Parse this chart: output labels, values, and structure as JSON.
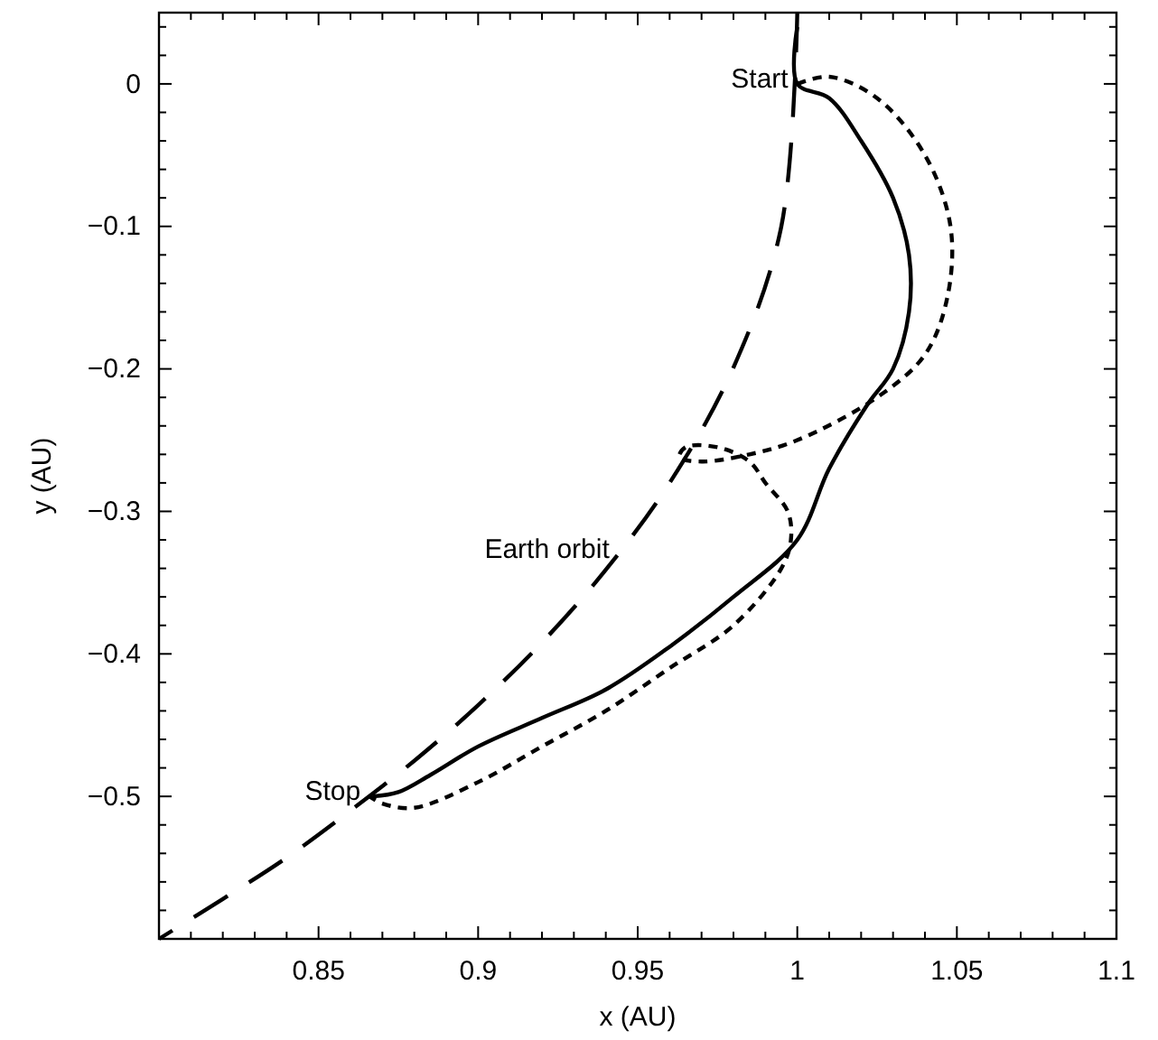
{
  "chart_data": {
    "type": "line",
    "xlabel": "x (AU)",
    "ylabel": "y (AU)",
    "xlim": [
      0.8,
      1.1
    ],
    "ylim": [
      -0.6,
      0.05
    ],
    "xticks": [
      {
        "value": 0.81,
        "label": null
      },
      {
        "value": 0.82,
        "label": null
      },
      {
        "value": 0.83,
        "label": null
      },
      {
        "value": 0.84,
        "label": null
      },
      0.85,
      {
        "value": 0.86,
        "label": null
      },
      {
        "value": 0.87,
        "label": null
      },
      {
        "value": 0.88,
        "label": null
      },
      {
        "value": 0.89,
        "label": null
      },
      0.9,
      {
        "value": 0.91,
        "label": null
      },
      {
        "value": 0.92,
        "label": null
      },
      {
        "value": 0.93,
        "label": null
      },
      {
        "value": 0.94,
        "label": null
      },
      0.95,
      {
        "value": 0.96,
        "label": null
      },
      {
        "value": 0.97,
        "label": null
      },
      {
        "value": 0.98,
        "label": null
      },
      {
        "value": 0.99,
        "label": null
      },
      1,
      {
        "value": 1.01,
        "label": null
      },
      {
        "value": 1.02,
        "label": null
      },
      {
        "value": 1.03,
        "label": null
      },
      {
        "value": 1.04,
        "label": null
      },
      1.05,
      {
        "value": 1.06,
        "label": null
      },
      {
        "value": 1.07,
        "label": null
      },
      {
        "value": 1.08,
        "label": null
      },
      {
        "value": 1.09,
        "label": null
      },
      1.1
    ],
    "yticks": [
      {
        "value": -0.58,
        "label": null
      },
      {
        "value": -0.56,
        "label": null
      },
      {
        "value": -0.54,
        "label": null
      },
      {
        "value": -0.52,
        "label": null
      },
      {
        "value": -0.5,
        "label": "−0.5"
      },
      {
        "value": -0.48,
        "label": null
      },
      {
        "value": -0.46,
        "label": null
      },
      {
        "value": -0.44,
        "label": null
      },
      {
        "value": -0.42,
        "label": null
      },
      {
        "value": -0.4,
        "label": "−0.4"
      },
      {
        "value": -0.38,
        "label": null
      },
      {
        "value": -0.36,
        "label": null
      },
      {
        "value": -0.34,
        "label": null
      },
      {
        "value": -0.32,
        "label": null
      },
      {
        "value": -0.3,
        "label": "−0.3"
      },
      {
        "value": -0.28,
        "label": null
      },
      {
        "value": -0.26,
        "label": null
      },
      {
        "value": -0.24,
        "label": null
      },
      {
        "value": -0.22,
        "label": null
      },
      {
        "value": -0.2,
        "label": "−0.2"
      },
      {
        "value": -0.18,
        "label": null
      },
      {
        "value": -0.16,
        "label": null
      },
      {
        "value": -0.14,
        "label": null
      },
      {
        "value": -0.12,
        "label": null
      },
      {
        "value": -0.1,
        "label": "−0.1"
      },
      {
        "value": -0.08,
        "label": null
      },
      {
        "value": -0.06,
        "label": null
      },
      {
        "value": -0.04,
        "label": null
      },
      {
        "value": -0.02,
        "label": null
      },
      0,
      {
        "value": 0.02,
        "label": null
      },
      {
        "value": 0.04,
        "label": null
      }
    ],
    "series": [
      {
        "color": "#000000",
        "line_style": "dashed",
        "x": [
          1,
          0.995,
          0.98,
          0.96,
          0.94,
          0.92,
          0.9,
          0.88,
          0.86,
          0.84,
          0.82,
          0.8
        ],
        "values": [
          0.05,
          -0.1,
          -0.199,
          -0.28,
          -0.341,
          -0.392,
          -0.436,
          -0.475,
          -0.51,
          -0.543,
          -0.572,
          -0.6
        ]
      },
      {
        "color": "#000000",
        "line_style": "solid",
        "x": [
          1,
          1,
          1.01,
          1.02,
          1.03,
          1.035,
          1.035,
          1.03,
          1.022,
          1.01,
          1.0,
          0.98,
          0.96,
          0.94,
          0.92,
          0.9,
          0.885,
          0.875,
          0.867
        ],
        "values": [
          0.04,
          0,
          -0.01,
          -0.04,
          -0.08,
          -0.12,
          -0.16,
          -0.2,
          -0.225,
          -0.27,
          -0.32,
          -0.36,
          -0.395,
          -0.425,
          -0.445,
          -0.465,
          -0.485,
          -0.497,
          -0.5
        ]
      },
      {
        "color": "#000000",
        "line_style": "dotted",
        "x": [
          1,
          1.01,
          1.025,
          1.04,
          1.048,
          1.047,
          1.04,
          1.025,
          1.0,
          0.985,
          0.97,
          0.963,
          0.965,
          0.975,
          0.985,
          0.99,
          0.997,
          0.998,
          0.995,
          0.98,
          0.96,
          0.94,
          0.92,
          0.9,
          0.88,
          0.87,
          0.866
        ],
        "values": [
          0,
          0.005,
          -0.01,
          -0.05,
          -0.1,
          -0.15,
          -0.19,
          -0.22,
          -0.25,
          -0.26,
          -0.265,
          -0.262,
          -0.255,
          -0.255,
          -0.265,
          -0.28,
          -0.3,
          -0.32,
          -0.34,
          -0.38,
          -0.41,
          -0.44,
          -0.465,
          -0.49,
          -0.508,
          -0.505,
          -0.5
        ]
      }
    ],
    "annotations": [
      {
        "text": "Start",
        "x": 1,
        "y": 0
      },
      {
        "text": "Stop",
        "x": 0.866,
        "y": -0.5
      },
      {
        "text": "Earth orbit",
        "x": 0.944,
        "y": -0.33
      }
    ]
  }
}
